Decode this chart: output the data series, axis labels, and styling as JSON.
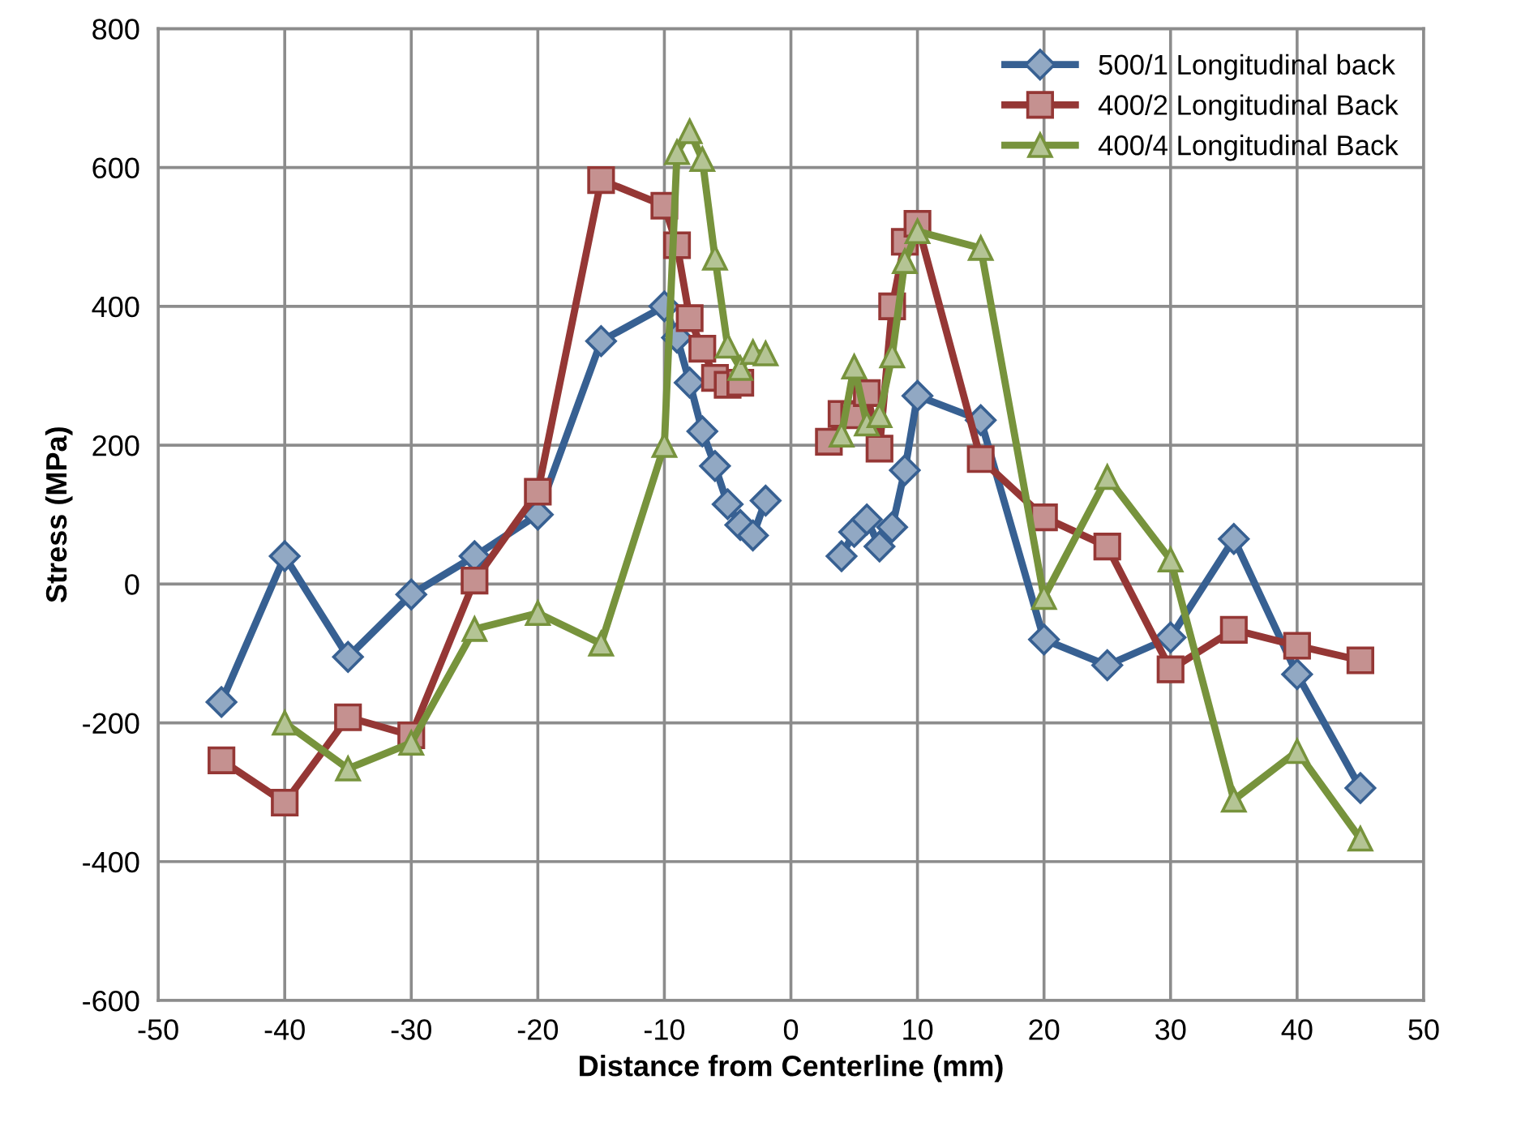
{
  "chart_data": {
    "type": "line",
    "xlabel": "Distance from Centerline (mm)",
    "ylabel": "Stress (MPa)",
    "xlim": [
      -50,
      50
    ],
    "xticks": [
      -50,
      -40,
      -30,
      -20,
      -10,
      0,
      10,
      20,
      30,
      40,
      50
    ],
    "ylim": [
      -600,
      800
    ],
    "yticks": [
      -600,
      -400,
      -200,
      0,
      200,
      400,
      600,
      800
    ],
    "grid": true,
    "legend": "top right",
    "line_style": "solid",
    "series": [
      {
        "name": "500/1 Longitudinal back",
        "color": "#376092",
        "marker": "diamond",
        "x": [
          -45,
          -40,
          -35,
          -30,
          -25,
          -20,
          -15,
          -10,
          -9,
          -8,
          -7,
          -6,
          -5,
          -4,
          -3,
          -2,
          null,
          4,
          5,
          6,
          7,
          8,
          9,
          10,
          15,
          20,
          25,
          30,
          35,
          40,
          45
        ],
        "values": [
          -170,
          40,
          -105,
          -15,
          40,
          100,
          350,
          400,
          355,
          290,
          220,
          170,
          115,
          85,
          70,
          120,
          null,
          40,
          75,
          93,
          54,
          82,
          164,
          271,
          236,
          -80,
          -117,
          -77,
          65,
          -130,
          -294
        ]
      },
      {
        "name": "400/2 Longitudinal Back",
        "color": "#953735",
        "marker": "square",
        "x": [
          -45,
          -40,
          -35,
          -30,
          -25,
          -20,
          -15,
          -10,
          -9,
          -8,
          -7,
          -6,
          -5,
          -4,
          null,
          3,
          4,
          5,
          6,
          7,
          8,
          9,
          10,
          15,
          20,
          25,
          30,
          35,
          40,
          45
        ],
        "values": [
          -254,
          -315,
          -192,
          -218,
          5,
          133,
          582,
          545,
          488,
          383,
          339,
          297,
          287,
          290,
          null,
          205,
          245,
          243,
          275,
          195,
          400,
          493,
          519,
          180,
          96,
          54,
          -123,
          -66,
          -89,
          -110
        ]
      },
      {
        "name": "400/4 Longitudinal Back",
        "color": "#77933c",
        "marker": "triangle",
        "x": [
          -40,
          -35,
          -30,
          -25,
          -20,
          -15,
          -10,
          -9,
          -8,
          -7,
          -6,
          -5,
          -4,
          -3,
          -2,
          null,
          4,
          5,
          6,
          7,
          8,
          9,
          10,
          15,
          20,
          25,
          30,
          35,
          40,
          45
        ],
        "values": [
          -200,
          -266,
          -229,
          -65,
          -42,
          -86,
          200,
          622,
          652,
          612,
          470,
          343,
          311,
          334,
          332,
          null,
          215,
          313,
          231,
          243,
          329,
          465,
          508,
          484,
          -19,
          154,
          35,
          -311,
          -241,
          -367
        ]
      }
    ]
  }
}
